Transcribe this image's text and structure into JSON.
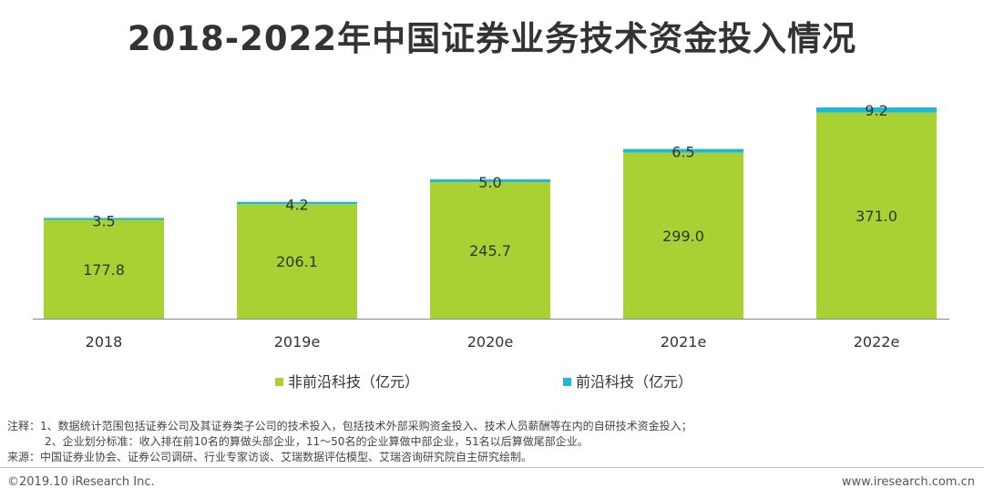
{
  "title": "2018-2022年中国证券业务技术资金投入情况",
  "chart_data": {
    "type": "bar",
    "stacked": true,
    "title": "2018-2022年中国证券业务技术资金投入情况",
    "categories": [
      "2018",
      "2019e",
      "2020e",
      "2021e",
      "2022e"
    ],
    "series": [
      {
        "name": "非前沿科技（亿元）",
        "color": "#a9d134",
        "values": [
          177.8,
          206.1,
          245.7,
          299.0,
          371.0
        ],
        "labels": [
          "177.8",
          "206.1",
          "245.7",
          "299.0",
          "371.0"
        ]
      },
      {
        "name": "前沿科技（亿元）",
        "color": "#1fb9d8",
        "values": [
          3.5,
          4.2,
          5.0,
          6.5,
          9.2
        ],
        "labels": [
          "3.5",
          "4.2",
          "5.0",
          "6.5",
          "9.2"
        ]
      }
    ],
    "ylim": [
      0,
      380.2
    ],
    "xlabel": "",
    "ylabel": "",
    "grid": false,
    "legend": "bottom"
  },
  "notes": {
    "line1": "注释：1、数据统计范围包括证券公司及其证券类子公司的技术投入，包括技术外部采购资金投入、技术人员薪酬等在内的自研技术资金投入；",
    "line2": "2、企业划分标准：收入排在前10名的算做头部企业，11～50名的企业算做中部企业，51名以后算做尾部企业。",
    "line3": "来源：中国证券业协会、证券公司调研、行业专家访谈、艾瑞数据评估模型、艾瑞咨询研究院自主研究绘制。"
  },
  "footer": {
    "copyright": "©2019.10 iResearch Inc.",
    "website": "www.iresearch.com.cn"
  }
}
